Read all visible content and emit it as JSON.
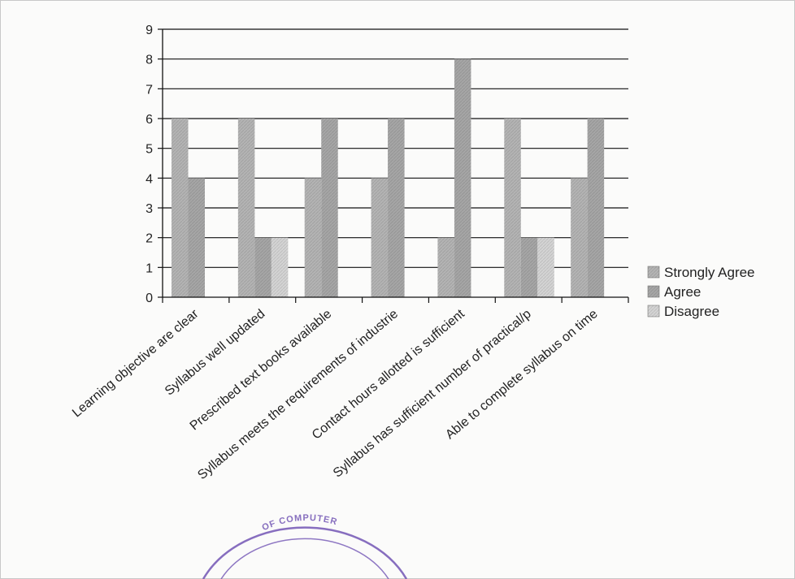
{
  "chart_data": {
    "type": "bar",
    "title": "",
    "xlabel": "",
    "ylabel": "",
    "ylim": [
      0,
      9
    ],
    "yticks": [
      0,
      1,
      2,
      3,
      4,
      5,
      6,
      7,
      8,
      9
    ],
    "grid": "horizontal",
    "legend_position": "right",
    "categories": [
      "Learning objective are clear",
      "Syllabus well updated",
      "Prescribed text books available",
      "Syllabus meets the requirements of industrie",
      "Contact hours allotted is sufficient",
      "Syllabus has sufficient number of practical/p",
      "Able to complete syllabus on time"
    ],
    "series": [
      {
        "name": "Strongly Agree",
        "values": [
          6,
          6,
          4,
          4,
          2,
          6,
          4
        ],
        "color": "#b4b4b4"
      },
      {
        "name": "Agree",
        "values": [
          4,
          2,
          6,
          6,
          8,
          2,
          6
        ],
        "color": "#a6a6a6"
      },
      {
        "name": "Disagree",
        "values": [
          0,
          2,
          0,
          0,
          0,
          2,
          0
        ],
        "color": "#d4d4d4"
      }
    ]
  },
  "stamp": {
    "text": "OF COMPUTER",
    "color": "#6a4bb0"
  }
}
